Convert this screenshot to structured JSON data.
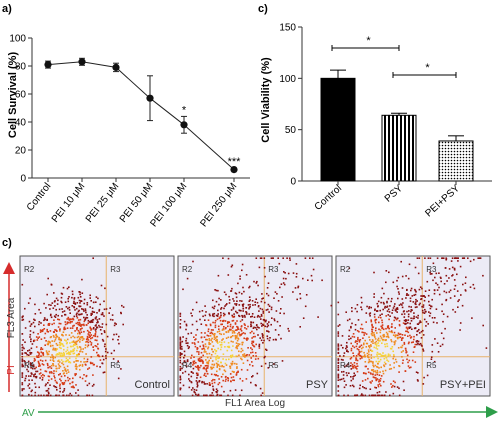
{
  "panel_labels": {
    "a": "a)",
    "b": "c)",
    "c": "c)"
  },
  "chart_data": [
    {
      "type": "line",
      "ylabel": "Cell Survival (%)",
      "ylim": [
        0,
        100
      ],
      "yticks": [
        0,
        20,
        40,
        60,
        80,
        100
      ],
      "categories": [
        "Control",
        "PEI 10 μM",
        "PEI 25 μM",
        "PEI 50 μM",
        "PEI 100 μM",
        "PEI 250 μM"
      ],
      "values": [
        81,
        83,
        79,
        57,
        38,
        6
      ],
      "errors": [
        2.5,
        2.5,
        3,
        16,
        6,
        1
      ],
      "significance": [
        "",
        "",
        "",
        "",
        "*",
        "***"
      ]
    },
    {
      "type": "bar",
      "ylabel": "Cell Viability (%)",
      "ylim": [
        0,
        150
      ],
      "yticks": [
        0,
        50,
        100,
        150
      ],
      "categories": [
        "Control",
        "PSY",
        "PEI+PSY"
      ],
      "values": [
        100,
        64,
        39
      ],
      "errors": [
        8,
        2,
        5
      ],
      "patterns": [
        "solid",
        "vertical-stripes",
        "dots"
      ],
      "comparisons": [
        {
          "from": 0,
          "to": 1,
          "label": "*"
        },
        {
          "from": 1,
          "to": 2,
          "label": "*"
        }
      ]
    }
  ],
  "flow": {
    "y_axis_label": "FL3 Area",
    "x_axis_label": "FL1 Area Log",
    "y_marker": "PI",
    "x_marker": "AV",
    "region_labels": [
      "R2",
      "R3",
      "R4",
      "R5"
    ],
    "plots": [
      {
        "label": "Control"
      },
      {
        "label": "PSY"
      },
      {
        "label": "PSY+PEI"
      }
    ],
    "colors": {
      "arrow_red": "#d62c2c",
      "arrow_green": "#2e9e4a",
      "gate_line": "#e8b26a",
      "background": "#ecebf6"
    }
  }
}
